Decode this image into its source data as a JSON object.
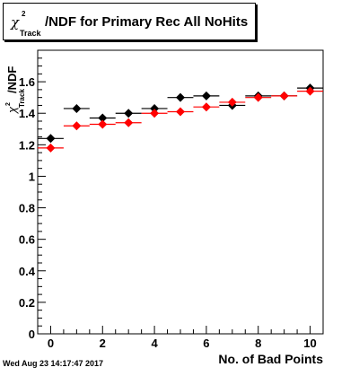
{
  "title": {
    "chi": "χ",
    "sup": "2",
    "sub": "Track",
    "main": "/NDF for Primary Rec All NoHits"
  },
  "ylabel": {
    "chi": "χ",
    "sup": "2",
    "sub": "Track",
    "main": "/NDF"
  },
  "xlabel": "No. of Bad Points",
  "timestamp": "Wed Aug 23 14:17:47 2017",
  "chart_data": {
    "type": "scatter",
    "xlim": [
      -0.5,
      10.5
    ],
    "ylim": [
      0,
      1.8
    ],
    "x_ticks": [
      0,
      2,
      4,
      6,
      8,
      10
    ],
    "y_ticks": [
      0,
      0.2,
      0.4,
      0.6,
      0.8,
      1,
      1.2,
      1.4,
      1.6
    ],
    "y_tick_labels": [
      "0",
      "0.2",
      "0.4",
      "0.6",
      "0.8",
      "1",
      "1.2",
      "1.4",
      "1.6"
    ],
    "grid": false,
    "series": [
      {
        "color": "#000000",
        "marker": "diamond",
        "x": [
          0,
          1,
          2,
          3,
          4,
          5,
          6,
          7,
          8,
          9,
          10
        ],
        "y": [
          1.24,
          1.43,
          1.37,
          1.4,
          1.43,
          1.5,
          1.51,
          1.45,
          1.51,
          1.51,
          1.56
        ],
        "yerr": [
          0.0,
          0.0,
          0.0,
          0.0,
          0.0,
          0.0,
          0.0,
          0.0,
          0.0,
          0.0,
          0.0
        ]
      },
      {
        "color": "#ff0000",
        "marker": "diamond",
        "x": [
          0,
          1,
          2,
          3,
          4,
          5,
          6,
          7,
          8,
          9,
          10
        ],
        "y": [
          1.18,
          1.32,
          1.33,
          1.34,
          1.4,
          1.41,
          1.44,
          1.47,
          1.5,
          1.51,
          1.54
        ],
        "yerr": [
          0.0,
          0.0,
          0.0,
          0.0,
          0.0,
          0.0,
          0.0,
          0.0,
          0.0,
          0.0,
          0.0
        ]
      }
    ]
  }
}
